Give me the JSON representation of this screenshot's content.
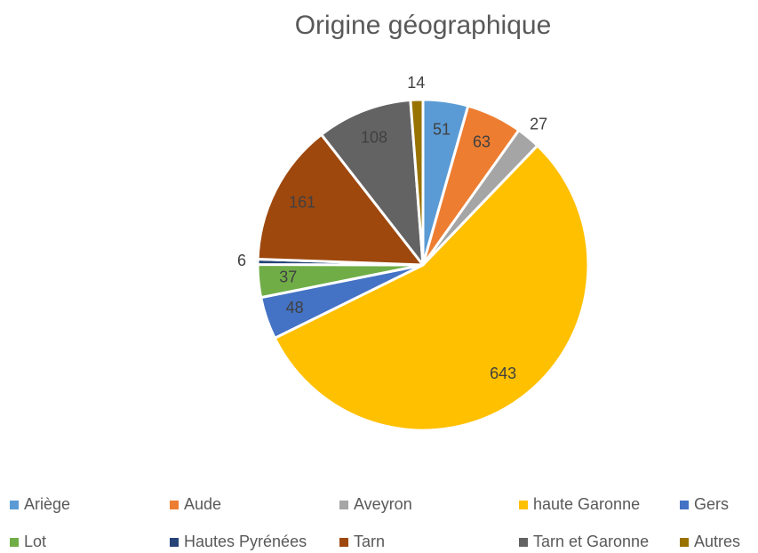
{
  "chart_data": {
    "type": "pie",
    "title": "Origine géographique",
    "categories": [
      "Ariège",
      "Aude",
      "Aveyron",
      "haute Garonne",
      "Gers",
      "Lot",
      "Hautes Pyrénées",
      "Tarn",
      "Tarn et Garonne",
      "Autres"
    ],
    "values": [
      51,
      63,
      27,
      643,
      48,
      37,
      6,
      161,
      108,
      14
    ],
    "colors": [
      "#5b9bd5",
      "#ed7d31",
      "#a5a5a5",
      "#ffc000",
      "#4472c4",
      "#70ad47",
      "#264478",
      "#9e480e",
      "#636363",
      "#997300"
    ],
    "legend": "bottom"
  }
}
